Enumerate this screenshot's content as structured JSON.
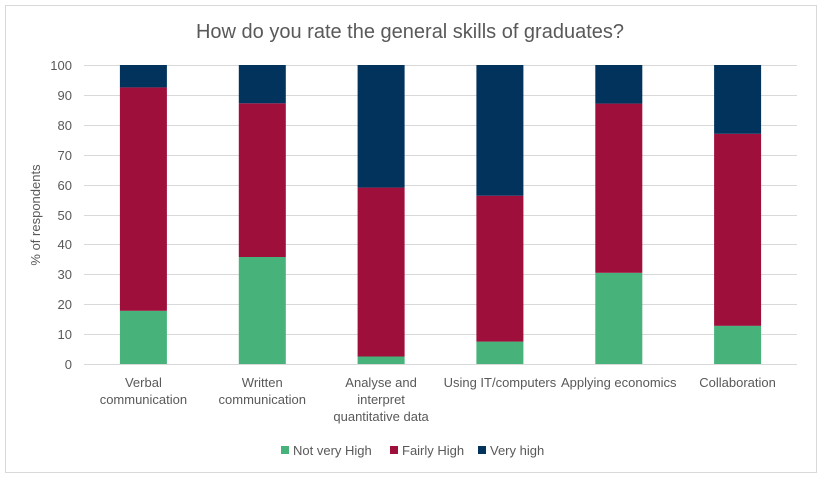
{
  "chart_data": {
    "type": "bar",
    "stacked": true,
    "title": "How do you rate the general skills of graduates?",
    "ylabel": "% of respondents",
    "xlabel": "",
    "ylim": [
      0,
      100
    ],
    "yticks": [
      0,
      10,
      20,
      30,
      40,
      50,
      60,
      70,
      80,
      90,
      100
    ],
    "grid": true,
    "legend_position": "bottom",
    "categories": [
      "Verbal communication",
      "Written communication",
      "Analyse and interpret quantitative data",
      "Using IT/computers",
      "Applying economics",
      "Collaboration"
    ],
    "category_lines": [
      [
        "Verbal",
        "communication"
      ],
      [
        "Written",
        "communication"
      ],
      [
        "Analyse and",
        "interpret",
        "quantitative data"
      ],
      [
        "Using IT/computers"
      ],
      [
        "Applying economics"
      ],
      [
        "Collaboration"
      ]
    ],
    "series": [
      {
        "name": "Not very High",
        "color": "#47b27a",
        "values": [
          17.8,
          35.8,
          2.5,
          7.5,
          30.5,
          12.8
        ]
      },
      {
        "name": "Fairly High",
        "color": "#9e0f3c",
        "values": [
          74.7,
          51.4,
          56.5,
          48.8,
          56.6,
          64.2
        ]
      },
      {
        "name": "Very high",
        "color": "#01335c",
        "values": [
          7.5,
          12.8,
          41.0,
          43.7,
          12.9,
          23.0
        ]
      }
    ],
    "colors": {
      "grid": "#d9d9d9",
      "text": "#595959",
      "title": "#595959"
    }
  }
}
